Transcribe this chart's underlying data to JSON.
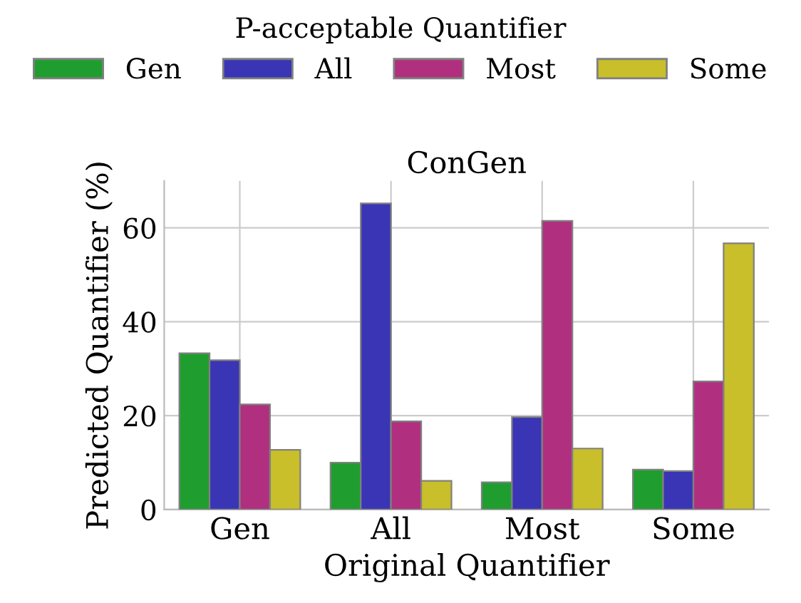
{
  "chart_data": {
    "type": "bar",
    "title": "ConGen",
    "xlabel": "Original Quantifier",
    "ylabel": "Predicted Quantifier (%)",
    "legend_title": "P-acceptable Quantifier",
    "categories": [
      "Gen",
      "All",
      "Most",
      "Some"
    ],
    "series": [
      {
        "name": "Gen",
        "color": "#1f9e2f",
        "values": [
          33.3,
          10.0,
          5.8,
          8.5
        ]
      },
      {
        "name": "All",
        "color": "#3a35b5",
        "values": [
          31.8,
          65.2,
          19.7,
          8.2
        ]
      },
      {
        "name": "Most",
        "color": "#b0307f",
        "values": [
          22.4,
          18.8,
          61.5,
          27.3
        ]
      },
      {
        "name": "Some",
        "color": "#c8bf2a",
        "values": [
          12.7,
          6.1,
          13.0,
          56.7
        ]
      }
    ],
    "ylim": [
      0,
      70
    ],
    "yticks": [
      0,
      20,
      40,
      60
    ],
    "grid": true,
    "legend": "top"
  }
}
